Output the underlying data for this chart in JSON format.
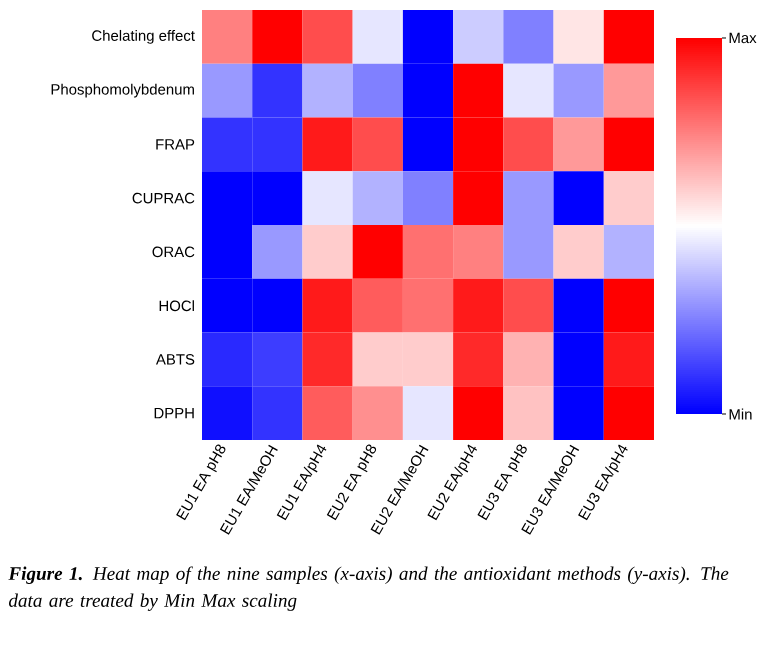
{
  "chart_data": {
    "type": "heatmap",
    "categories": [
      "EU1 EA pH8",
      "EU1 EA/MeOH",
      "EU1 EA/pH4",
      "EU2 EA pH8",
      "EU2 EA/MeOH",
      "EU2 EA/pH4",
      "EU3 EA pH8",
      "EU3 EA/MeOH",
      "EU3 EA/pH4"
    ],
    "y_categories": [
      "Chelating effect",
      "Phosphomolybdenum",
      "FRAP",
      "CUPRAC",
      "ORAC",
      "HOCl",
      "ABTS",
      "DPPH"
    ],
    "cells": [
      [
        0.75,
        1.0,
        0.85,
        0.45,
        0.0,
        0.4,
        0.25,
        0.55,
        1.0
      ],
      [
        0.3,
        0.1,
        0.35,
        0.25,
        0.0,
        1.0,
        0.45,
        0.3,
        0.7
      ],
      [
        0.1,
        0.1,
        0.95,
        0.85,
        0.0,
        1.0,
        0.85,
        0.7,
        1.0
      ],
      [
        0.0,
        0.0,
        0.45,
        0.35,
        0.25,
        1.0,
        0.3,
        0.0,
        0.6
      ],
      [
        0.0,
        0.3,
        0.6,
        1.0,
        0.78,
        0.75,
        0.3,
        0.6,
        0.35
      ],
      [
        0.0,
        0.0,
        0.95,
        0.82,
        0.78,
        0.95,
        0.85,
        0.0,
        1.0
      ],
      [
        0.08,
        0.12,
        0.92,
        0.6,
        0.6,
        0.92,
        0.65,
        0.0,
        0.95
      ],
      [
        0.03,
        0.1,
        0.82,
        0.72,
        0.45,
        1.0,
        0.62,
        0.0,
        1.0
      ]
    ],
    "clim": [
      0,
      1
    ],
    "cticks": [
      {
        "value": 0,
        "label": "Min"
      },
      {
        "value": 1,
        "label": "Max"
      }
    ],
    "annotations": [
      "**Figure 1.** Heat map of the nine samples (x-axis) and the antioxidant methods (y-axis). The data are treated by Min Max scaling"
    ]
  }
}
